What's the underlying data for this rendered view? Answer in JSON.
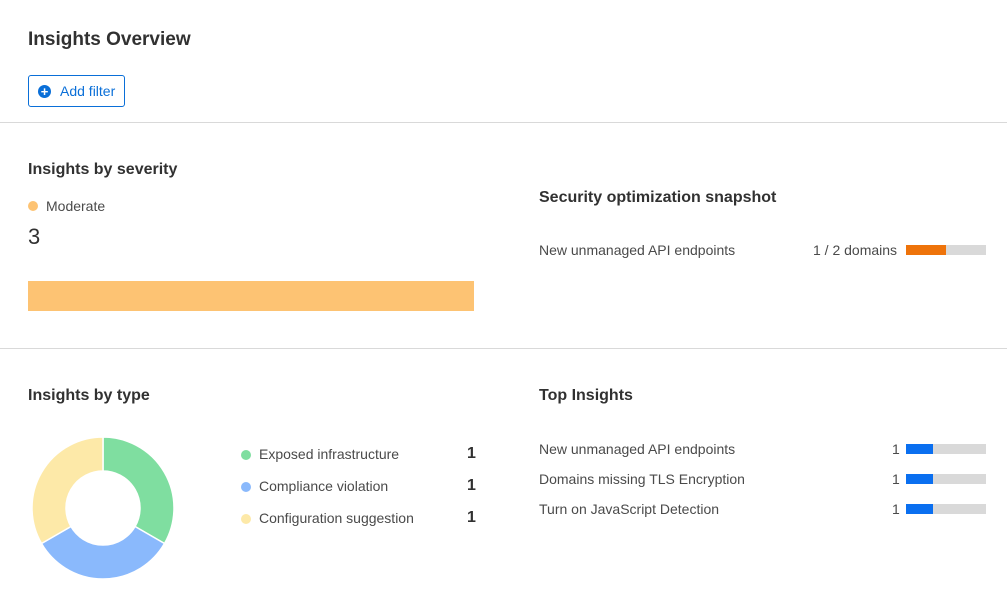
{
  "header": {
    "title": "Insights Overview",
    "add_filter": "Add filter",
    "add_icon": "plus-circle-icon"
  },
  "severity": {
    "title": "Insights by severity",
    "legend": "Moderate",
    "count": "3",
    "color": "#fdc373"
  },
  "snapshot": {
    "title": "Security optimization snapshot",
    "rows": [
      {
        "label": "New unmanaged API endpoints",
        "value": "1 / 2 domains",
        "fraction": 0.5,
        "color": "#ee730a"
      }
    ]
  },
  "type": {
    "title": "Insights by type",
    "items": [
      {
        "label": "Exposed infrastructure",
        "count": "1",
        "color": "#7fdea0"
      },
      {
        "label": "Compliance violation",
        "count": "1",
        "color": "#8ab9fc"
      },
      {
        "label": "Configuration suggestion",
        "count": "1",
        "color": "#fde9a8"
      }
    ]
  },
  "top": {
    "title": "Top Insights",
    "rows": [
      {
        "label": "New unmanaged API endpoints",
        "count": "1",
        "fraction": 0.333
      },
      {
        "label": "Domains missing TLS Encryption",
        "count": "1",
        "fraction": 0.333
      },
      {
        "label": "Turn on JavaScript Detection",
        "count": "1",
        "fraction": 0.333
      }
    ],
    "color": "#0a6ff0"
  }
}
